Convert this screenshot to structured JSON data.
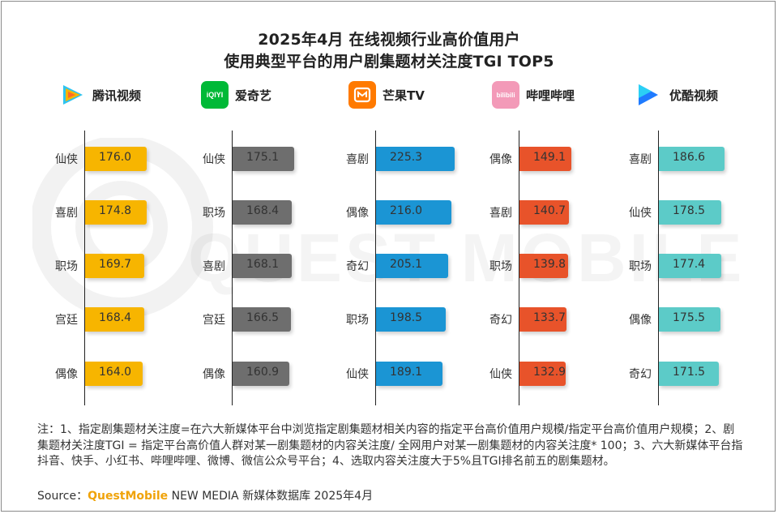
{
  "title_line1": "2025年4月 在线视频行业高价值用户",
  "title_line2": "使用典型平台的用户剧集题材关注度TGI TOP5",
  "watermark_text": "QUEST MOBILE",
  "colors": {
    "tencent": "#f7b500",
    "iqiyi": "#6e6e6e",
    "mgtv": "#1b95d4",
    "bilibili": "#e8532a",
    "youku": "#5ccbc8"
  },
  "platforms": [
    {
      "name": "腾讯视频",
      "icon": "tencent-video-logo"
    },
    {
      "name": "爱奇艺",
      "icon": "iqiyi-logo",
      "logo_text": "iQIYI"
    },
    {
      "name": "芒果TV",
      "icon": "mgtv-logo"
    },
    {
      "name": "哔哩哔哩",
      "icon": "bilibili-logo",
      "logo_text": "bilibili"
    },
    {
      "name": "优酷视频",
      "icon": "youku-logo"
    }
  ],
  "chart_data": [
    {
      "type": "bar",
      "platform": "腾讯视频",
      "categories": [
        "仙侠",
        "喜剧",
        "职场",
        "宫廷",
        "偶像"
      ],
      "values": [
        176.0,
        174.8,
        169.7,
        168.4,
        164.0
      ]
    },
    {
      "type": "bar",
      "platform": "爱奇艺",
      "categories": [
        "仙侠",
        "职场",
        "喜剧",
        "宫廷",
        "偶像"
      ],
      "values": [
        175.1,
        168.4,
        168.1,
        166.5,
        160.9
      ]
    },
    {
      "type": "bar",
      "platform": "芒果TV",
      "categories": [
        "喜剧",
        "偶像",
        "奇幻",
        "职场",
        "仙侠"
      ],
      "values": [
        225.3,
        216.0,
        205.1,
        198.5,
        189.1
      ]
    },
    {
      "type": "bar",
      "platform": "哔哩哔哩",
      "categories": [
        "偶像",
        "喜剧",
        "职场",
        "奇幻",
        "仙侠"
      ],
      "values": [
        149.1,
        140.7,
        139.8,
        133.7,
        132.9
      ]
    },
    {
      "type": "bar",
      "platform": "优酷视频",
      "categories": [
        "喜剧",
        "仙侠",
        "职场",
        "偶像",
        "奇幻"
      ],
      "values": [
        186.6,
        178.5,
        177.4,
        175.5,
        171.5
      ]
    }
  ],
  "note_text": "注：1、指定剧集题材关注度=在六大新媒体平台中浏览指定剧集题材相关内容的指定平台高价值用户规模/指定平台高价值用户规模；2、剧集题材关注度TGI = 指定平台高价值人群对某一剧集题材的内容关注度/ 全网用户对某一剧集题材的内容关注度* 100；3、六大新媒体平台指抖音、快手、小红书、哔哩哔哩、微博、微信公众号平台；4、选取内容关注度大于5%且TGI排名前五的剧集题材。",
  "source_prefix": "Source：",
  "source_brand": "QuestMobile",
  "source_suffix": " NEW MEDIA 新媒体数据库 2025年4月"
}
